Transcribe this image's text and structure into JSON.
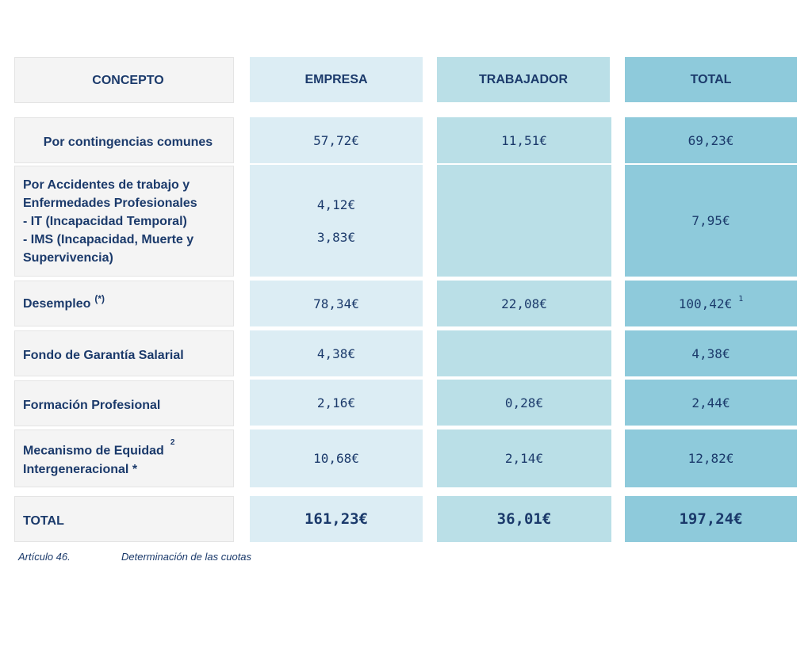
{
  "headers": {
    "concepto": "CONCEPTO",
    "empresa": "EMPRESA",
    "trabajador": "TRABAJADOR",
    "total": "TOTAL"
  },
  "rows": [
    {
      "concepto": "Por contingencias comunes",
      "empresa": "57,72€",
      "trabajador": "11,51€",
      "total": "69,23€"
    },
    {
      "concepto_lines": [
        "Por Accidentes de trabajo y",
        "Enfermedades Profesionales",
        "- IT (Incapacidad Temporal)",
        "- IMS (Incapacidad, Muerte y",
        "Supervivencia)"
      ],
      "empresa_it": "4,12€",
      "empresa_ims": "3,83€",
      "trabajador": "",
      "total": "7,95€"
    },
    {
      "concepto": "Desempleo",
      "concepto_sup": "(*)",
      "empresa": "78,34€",
      "trabajador": "22,08€",
      "total": "100,42€",
      "total_sup": "1"
    },
    {
      "concepto": "Fondo de Garantía Salarial",
      "empresa": "4,38€",
      "trabajador": "",
      "total": "4,38€"
    },
    {
      "concepto": "Formación Profesional",
      "empresa": "2,16€",
      "trabajador": "0,28€",
      "total": "2,44€"
    },
    {
      "concepto_lines": [
        "Mecanismo de Equidad",
        "Intergeneracional *"
      ],
      "concepto_sup": "2",
      "empresa": "10,68€",
      "trabajador": "2,14€",
      "total": "12,82€"
    }
  ],
  "totals": {
    "label": "TOTAL",
    "empresa": "161,23€",
    "trabajador": "36,01€",
    "total": "197,24€"
  },
  "caption": {
    "article": "Artículo 46.",
    "title": "Determinación de las cuotas"
  },
  "colors": {
    "text": "#1b3a6b",
    "concepto_bg": "#f4f4f4",
    "empresa_bg": "#dcedf4",
    "trabajador_bg": "#badfe7",
    "total_bg": "#8ecadb"
  }
}
